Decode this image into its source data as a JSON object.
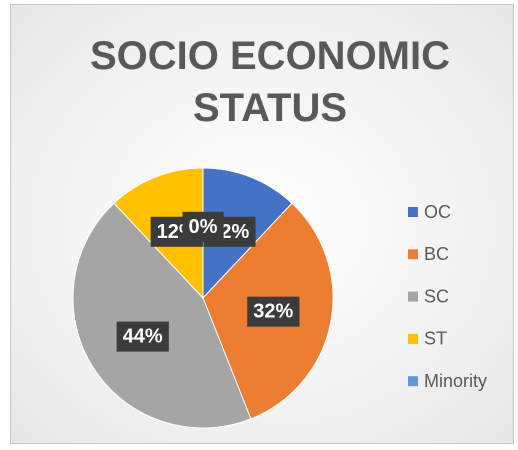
{
  "chart_data": {
    "type": "pie",
    "title": "SOCIO ECONOMIC STATUS",
    "categories": [
      "OC",
      "BC",
      "SC",
      "ST",
      "Minority"
    ],
    "values": [
      12,
      32,
      44,
      12,
      0
    ],
    "value_labels": [
      "12%",
      "32%",
      "44%",
      "12%",
      "0%"
    ],
    "colors": [
      "#4472c4",
      "#ed7d31",
      "#a5a5a5",
      "#ffc000",
      "#5b9bd5"
    ],
    "legend": "right"
  }
}
